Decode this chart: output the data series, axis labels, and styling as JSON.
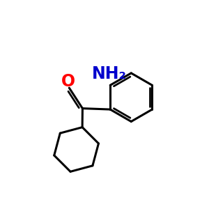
{
  "background_color": "#ffffff",
  "bond_color": "#000000",
  "bond_width": 2.2,
  "oxygen_color": "#ff0000",
  "nitrogen_color": "#0000cd",
  "oxygen_label": "O",
  "nitrogen_label": "NH₂",
  "font_size_o": 17,
  "font_size_nh2": 17,
  "fig_size": [
    3.0,
    3.0
  ],
  "dpi": 100,
  "xlim": [
    0,
    10
  ],
  "ylim": [
    0,
    10
  ]
}
